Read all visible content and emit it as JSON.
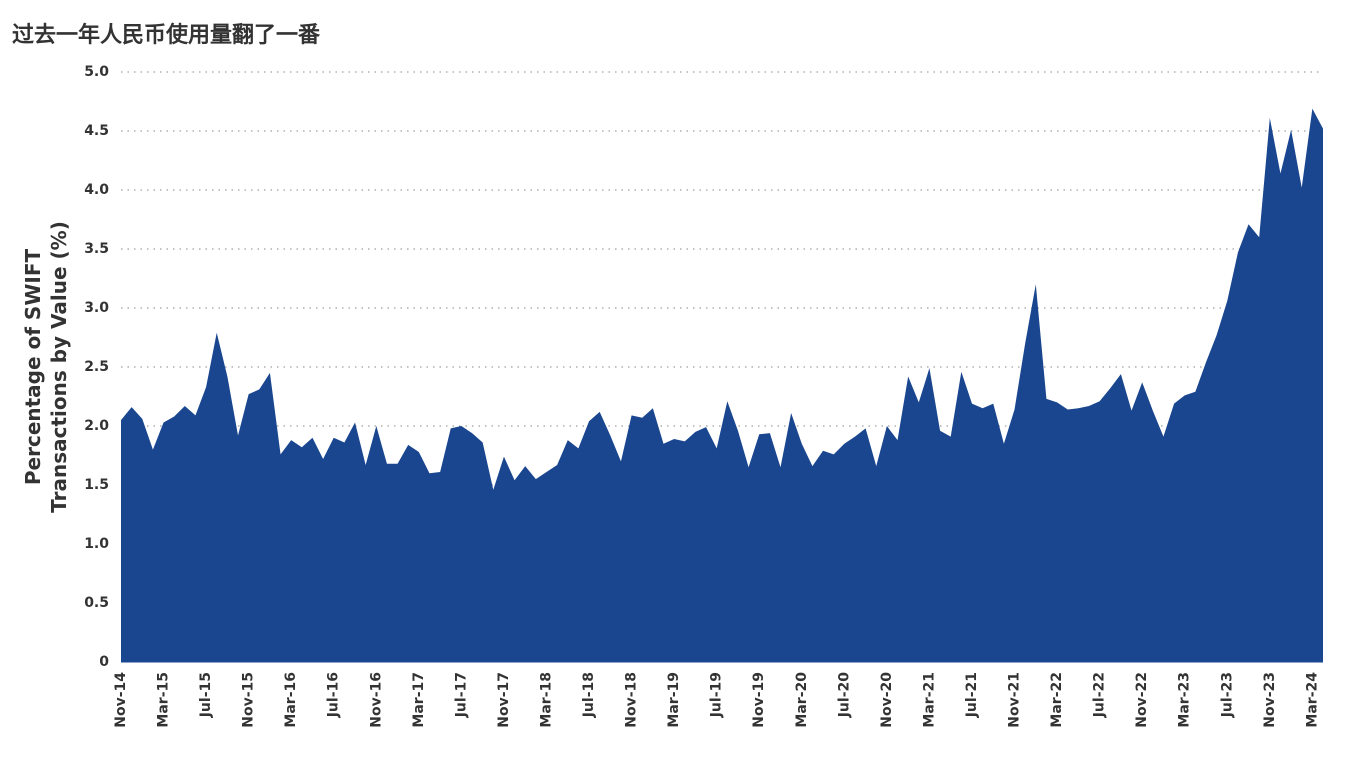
{
  "chart_data": {
    "type": "area",
    "title": "过去一年人民币使用量翻了一番",
    "y_label": [
      "Percentage of SWIFT",
      "Transactions by Value (%)"
    ],
    "color": "#1a4690",
    "grid": true,
    "categories": [
      "Nov-14",
      null,
      null,
      null,
      "Mar-15",
      null,
      null,
      null,
      "Jul-15",
      null,
      null,
      null,
      "Nov-15",
      null,
      null,
      null,
      "Mar-16",
      null,
      null,
      null,
      "Jul-16",
      null,
      null,
      null,
      "Nov-16",
      null,
      null,
      null,
      "Mar-17",
      null,
      null,
      null,
      "Jul-17",
      null,
      null,
      null,
      "Nov-17",
      null,
      null,
      null,
      "Mar-18",
      null,
      null,
      null,
      "Jul-18",
      null,
      null,
      null,
      "Nov-18",
      null,
      null,
      null,
      "Mar-19",
      null,
      null,
      null,
      "Jul-19",
      null,
      null,
      null,
      "Nov-19",
      null,
      null,
      null,
      "Mar-20",
      null,
      null,
      null,
      "Jul-20",
      null,
      null,
      null,
      "Nov-20",
      null,
      null,
      null,
      "Mar-21",
      null,
      null,
      null,
      "Jul-21",
      null,
      null,
      null,
      "Nov-21",
      null,
      null,
      null,
      "Mar-22",
      null,
      null,
      null,
      "Jul-22",
      null,
      null,
      null,
      "Nov-22",
      null,
      null,
      null,
      "Mar-23",
      null,
      null,
      null,
      "Jul-23",
      null,
      null,
      null,
      "Nov-23",
      null,
      null,
      null,
      "Mar-24",
      null
    ],
    "values": [
      2.05,
      2.16,
      2.06,
      1.8,
      2.03,
      2.08,
      2.17,
      2.09,
      2.33,
      2.79,
      2.42,
      1.92,
      2.27,
      2.31,
      2.45,
      1.76,
      1.88,
      1.82,
      1.9,
      1.72,
      1.9,
      1.86,
      2.03,
      1.67,
      2.0,
      1.68,
      1.68,
      1.84,
      1.78,
      1.6,
      1.61,
      1.98,
      2.0,
      1.94,
      1.86,
      1.46,
      1.74,
      1.54,
      1.66,
      1.55,
      1.61,
      1.67,
      1.88,
      1.81,
      2.04,
      2.12,
      1.92,
      1.7,
      2.09,
      2.07,
      2.15,
      1.85,
      1.89,
      1.87,
      1.95,
      1.99,
      1.81,
      2.21,
      1.96,
      1.65,
      1.93,
      1.94,
      1.65,
      2.11,
      1.85,
      1.66,
      1.79,
      1.76,
      1.85,
      1.91,
      1.98,
      1.66,
      2.0,
      1.88,
      2.42,
      2.2,
      2.49,
      1.96,
      1.91,
      2.46,
      2.19,
      2.15,
      2.19,
      1.85,
      2.14,
      2.7,
      3.2,
      2.23,
      2.2,
      2.14,
      2.15,
      2.17,
      2.21,
      2.32,
      2.44,
      2.13,
      2.37,
      2.13,
      1.91,
      2.19,
      2.26,
      2.29,
      2.54,
      2.77,
      3.06,
      3.47,
      3.71,
      3.6,
      4.61,
      4.14,
      4.51,
      4.02,
      4.69,
      4.52
    ],
    "ylim": [
      0,
      5
    ],
    "yticks": [
      0,
      0.5,
      {
        "value": 1,
        "label": "1.0"
      },
      1.5,
      {
        "value": 2,
        "label": "2.0"
      },
      2.5,
      {
        "value": 3,
        "label": "3.0"
      },
      3.5,
      {
        "value": 4,
        "label": "4.0"
      },
      4.5,
      {
        "value": 5,
        "label": "5.0"
      }
    ]
  }
}
